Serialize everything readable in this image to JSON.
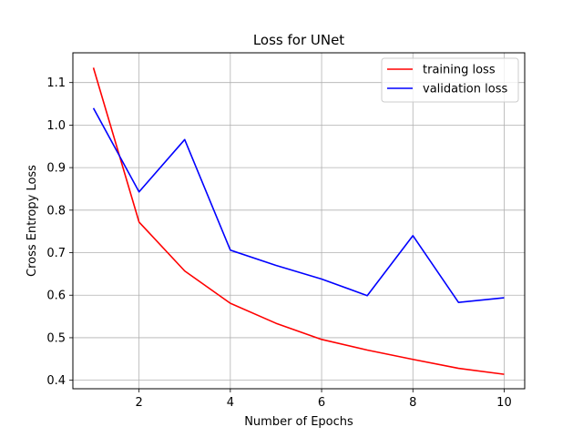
{
  "chart_data": {
    "type": "line",
    "title": "Loss for UNet",
    "xlabel": "Number of Epochs",
    "ylabel": "Cross Entropy Loss",
    "x": [
      1,
      2,
      3,
      4,
      5,
      6,
      7,
      8,
      9,
      10
    ],
    "xlim": [
      0.55,
      10.45
    ],
    "ylim": [
      0.38,
      1.17
    ],
    "xticks": [
      2,
      4,
      6,
      8,
      10
    ],
    "yticks": [
      0.4,
      0.5,
      0.6,
      0.7,
      0.8,
      0.9,
      1.0,
      1.1
    ],
    "grid": true,
    "legend_position": "top-right",
    "series": [
      {
        "name": "training loss",
        "color": "#ff0000",
        "values": [
          1.135,
          0.772,
          0.657,
          0.581,
          0.534,
          0.496,
          0.471,
          0.449,
          0.428,
          0.414
        ]
      },
      {
        "name": "validation loss",
        "color": "#0000ff",
        "values": [
          1.04,
          0.843,
          0.966,
          0.706,
          0.67,
          0.638,
          0.599,
          0.74,
          0.583,
          0.594
        ]
      }
    ]
  }
}
